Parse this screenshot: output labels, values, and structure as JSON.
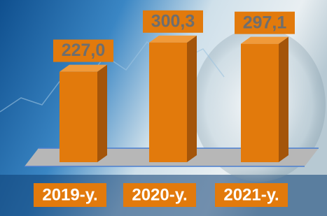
{
  "chart_data": {
    "type": "bar",
    "categories": [
      "2019-у.",
      "2020-у.",
      "2021-у."
    ],
    "values": [
      227.0,
      300.3,
      297.1
    ],
    "value_labels": [
      "227,0",
      "300,3",
      "297,1"
    ],
    "color": "#e27a0c"
  }
}
